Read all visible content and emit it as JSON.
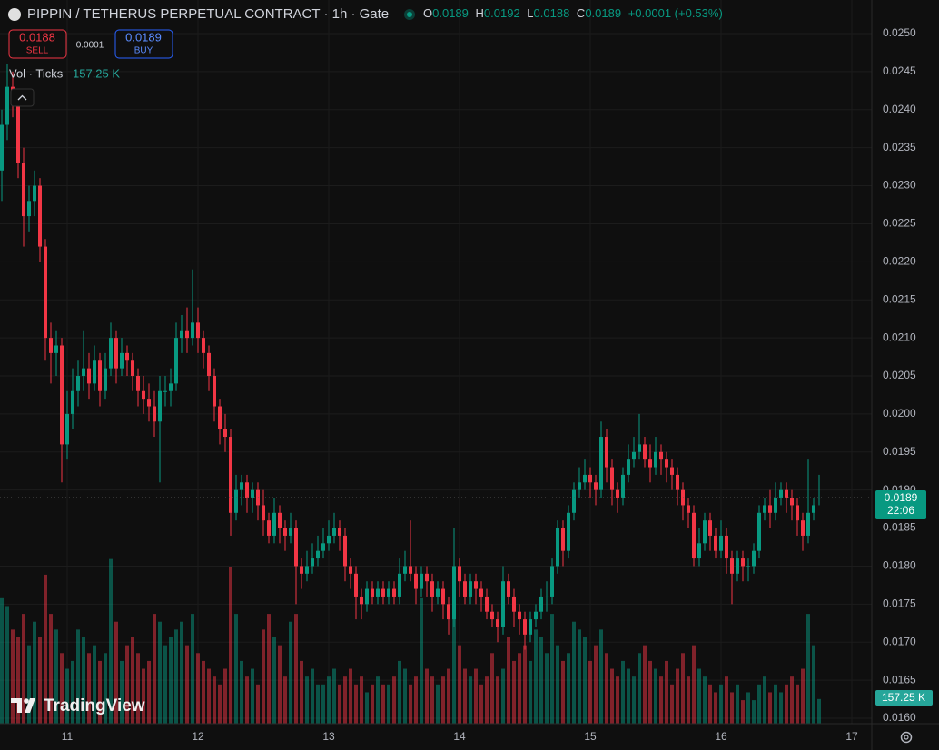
{
  "header": {
    "title": "PIPPIN / TETHERUS PERPETUAL CONTRACT · 1h · Gate",
    "o_key": "O",
    "o_val": "0.0189",
    "h_key": "H",
    "h_val": "0.0192",
    "l_key": "L",
    "l_val": "0.0188",
    "c_key": "C",
    "c_val": "0.0189",
    "change": "+0.0001 (+0.53%)"
  },
  "trade": {
    "sell_price": "0.0188",
    "sell": "SELL",
    "spread": "0.0001",
    "buy_price": "0.0189",
    "buy": "BUY"
  },
  "volume_legend": {
    "name": "Vol · Ticks",
    "value": "157.25 K"
  },
  "price_badge": {
    "price": "0.0189",
    "countdown": "22:06"
  },
  "volume_badge": "157.25 K",
  "logo": "TradingView",
  "chart_data": {
    "type": "candlestick",
    "xlim": [
      -0.333,
      159.667
    ],
    "xticks": [
      {
        "value": 12,
        "label": "11"
      },
      {
        "value": 36,
        "label": "12"
      },
      {
        "value": 60,
        "label": "13"
      },
      {
        "value": 84,
        "label": "14"
      },
      {
        "value": 108,
        "label": "15"
      },
      {
        "value": 132,
        "label": "16"
      },
      {
        "value": 156,
        "label": "17"
      }
    ],
    "ylim": [
      0.016,
      0.025
    ],
    "yticks": [
      {
        "value": 0.016,
        "label": "0.0160"
      },
      0.0165,
      {
        "value": 0.017,
        "label": "0.0170"
      },
      0.0175,
      {
        "value": 0.018,
        "label": "0.0180"
      },
      0.0185,
      {
        "value": 0.019,
        "label": "0.0190"
      },
      0.0195,
      {
        "value": 0.02,
        "label": "0.0200"
      },
      0.0205,
      {
        "value": 0.021,
        "label": "0.0210"
      },
      0.0215,
      {
        "value": 0.022,
        "label": "0.0220"
      },
      0.0225,
      {
        "value": 0.023,
        "label": "0.0230"
      },
      0.0235,
      {
        "value": 0.024,
        "label": "0.0240"
      },
      0.0245,
      {
        "value": 0.025,
        "label": "0.0250"
      }
    ],
    "grid": true,
    "up_color": "#089981",
    "down_color": "#f23645",
    "current_price": 0.0189,
    "open": [
      0.0232,
      0.0238,
      0.0243,
      0.0241,
      0.0233,
      0.0226,
      0.0228,
      0.023,
      0.0222,
      0.021,
      0.0208,
      0.0209,
      0.0196,
      0.02,
      0.0203,
      0.0205,
      0.0206,
      0.0204,
      0.0207,
      0.0203,
      0.0206,
      0.021,
      0.0206,
      0.0208,
      0.0207,
      0.0205,
      0.0203,
      0.0202,
      0.0201,
      0.0199,
      0.0203,
      0.0203,
      0.0204,
      0.021,
      0.0211,
      0.021,
      0.0212,
      0.021,
      0.0208,
      0.0205,
      0.0201,
      0.0198,
      0.0197,
      0.0187,
      0.019,
      0.0191,
      0.0189,
      0.019,
      0.0188,
      0.0186,
      0.0184,
      0.0187,
      0.0185,
      0.0184,
      0.0185,
      0.018,
      0.0179,
      0.018,
      0.0181,
      0.0182,
      0.0183,
      0.0184,
      0.0185,
      0.0184,
      0.018,
      0.0179,
      0.0176,
      0.0175,
      0.0177,
      0.0176,
      0.0177,
      0.0176,
      0.0177,
      0.0176,
      0.0179,
      0.018,
      0.0179,
      0.0177,
      0.0179,
      0.0178,
      0.0176,
      0.0177,
      0.0175,
      0.0173,
      0.018,
      0.0178,
      0.0176,
      0.0178,
      0.0177,
      0.0176,
      0.0174,
      0.0173,
      0.0172,
      0.0178,
      0.0176,
      0.0174,
      0.0173,
      0.0171,
      0.0173,
      0.0174,
      0.0176,
      0.0176,
      0.018,
      0.0185,
      0.0182,
      0.0187,
      0.019,
      0.0191,
      0.0192,
      0.0191,
      0.019,
      0.0197,
      0.0193,
      0.019,
      0.0189,
      0.0192,
      0.0194,
      0.0195,
      0.0196,
      0.0194,
      0.0193,
      0.0195,
      0.0194,
      0.0193,
      0.0192,
      0.019,
      0.0188,
      0.0187,
      0.0181,
      0.0183,
      0.0186,
      0.0184,
      0.0182,
      0.0184,
      0.0181,
      0.0179,
      0.0181,
      0.018,
      0.018,
      0.0182,
      0.0187,
      0.0188,
      0.0187,
      0.0189,
      0.019,
      0.0189,
      0.0188,
      0.0186,
      0.0184,
      0.0187,
      0.0189
    ],
    "high": [
      0.024,
      0.0246,
      0.0245,
      0.0242,
      0.0235,
      0.023,
      0.0232,
      0.0231,
      0.0223,
      0.0212,
      0.0211,
      0.021,
      0.0203,
      0.0206,
      0.0207,
      0.0211,
      0.0208,
      0.0209,
      0.0208,
      0.0208,
      0.0212,
      0.0211,
      0.021,
      0.0209,
      0.0208,
      0.0206,
      0.0205,
      0.0204,
      0.0203,
      0.0205,
      0.0205,
      0.0206,
      0.0212,
      0.0213,
      0.0214,
      0.0219,
      0.0214,
      0.0211,
      0.0209,
      0.0206,
      0.0202,
      0.02,
      0.0198,
      0.0192,
      0.0192,
      0.0192,
      0.0191,
      0.0191,
      0.019,
      0.0187,
      0.0189,
      0.0188,
      0.0186,
      0.0187,
      0.0186,
      0.0181,
      0.0182,
      0.0183,
      0.0184,
      0.0185,
      0.0186,
      0.0187,
      0.0186,
      0.0185,
      0.0181,
      0.018,
      0.0177,
      0.0178,
      0.0178,
      0.0178,
      0.0178,
      0.0178,
      0.0178,
      0.0181,
      0.0182,
      0.0186,
      0.018,
      0.018,
      0.018,
      0.0179,
      0.0178,
      0.0178,
      0.0176,
      0.0185,
      0.0181,
      0.0179,
      0.0179,
      0.0179,
      0.0178,
      0.0177,
      0.0175,
      0.0174,
      0.018,
      0.0179,
      0.0177,
      0.0175,
      0.0174,
      0.0174,
      0.0175,
      0.0177,
      0.0178,
      0.0181,
      0.0186,
      0.0186,
      0.0188,
      0.0191,
      0.0193,
      0.0194,
      0.0193,
      0.0192,
      0.0199,
      0.0198,
      0.0194,
      0.0191,
      0.0193,
      0.0196,
      0.0197,
      0.02,
      0.0197,
      0.0196,
      0.0197,
      0.0196,
      0.0195,
      0.0194,
      0.0193,
      0.0191,
      0.0189,
      0.0188,
      0.0185,
      0.0187,
      0.0187,
      0.0185,
      0.0186,
      0.0185,
      0.0182,
      0.0182,
      0.0182,
      0.0181,
      0.0183,
      0.0188,
      0.0189,
      0.019,
      0.0191,
      0.0191,
      0.0191,
      0.019,
      0.0189,
      0.0187,
      0.0194,
      0.0189,
      0.0192
    ],
    "low": [
      0.0228,
      0.0236,
      0.0239,
      0.0231,
      0.0222,
      0.0224,
      0.0226,
      0.022,
      0.0207,
      0.0204,
      0.0205,
      0.0191,
      0.0194,
      0.0198,
      0.0201,
      0.0203,
      0.0202,
      0.0203,
      0.0201,
      0.0202,
      0.0205,
      0.0204,
      0.0205,
      0.0205,
      0.0203,
      0.0201,
      0.02,
      0.0199,
      0.0197,
      0.0191,
      0.0201,
      0.0201,
      0.0203,
      0.0208,
      0.0208,
      0.0209,
      0.0208,
      0.0206,
      0.0203,
      0.0199,
      0.0196,
      0.0195,
      0.0184,
      0.0186,
      0.0188,
      0.0187,
      0.0187,
      0.0186,
      0.0184,
      0.0183,
      0.0183,
      0.0183,
      0.0182,
      0.0183,
      0.0175,
      0.0177,
      0.0178,
      0.0179,
      0.018,
      0.0181,
      0.0182,
      0.0183,
      0.0182,
      0.0178,
      0.0177,
      0.0173,
      0.0173,
      0.0174,
      0.0175,
      0.0175,
      0.0175,
      0.0175,
      0.0175,
      0.0175,
      0.0178,
      0.0178,
      0.0175,
      0.0176,
      0.0176,
      0.0174,
      0.0175,
      0.0173,
      0.0171,
      0.0172,
      0.0176,
      0.0175,
      0.0175,
      0.0175,
      0.0174,
      0.0173,
      0.0172,
      0.017,
      0.0171,
      0.0175,
      0.0172,
      0.0171,
      0.0169,
      0.017,
      0.0172,
      0.0173,
      0.0174,
      0.0175,
      0.0179,
      0.018,
      0.0181,
      0.0186,
      0.0189,
      0.019,
      0.0189,
      0.0188,
      0.0189,
      0.0191,
      0.0188,
      0.0187,
      0.0188,
      0.0191,
      0.0193,
      0.0194,
      0.0193,
      0.0191,
      0.0192,
      0.0192,
      0.0191,
      0.019,
      0.0188,
      0.0186,
      0.0185,
      0.018,
      0.018,
      0.0182,
      0.0182,
      0.0181,
      0.0181,
      0.0179,
      0.0175,
      0.0178,
      0.0178,
      0.0178,
      0.0179,
      0.0181,
      0.0186,
      0.0185,
      0.0186,
      0.0188,
      0.0187,
      0.0186,
      0.0184,
      0.0182,
      0.0183,
      0.0186,
      0.0188
    ],
    "close": [
      0.0238,
      0.0243,
      0.0241,
      0.0233,
      0.0226,
      0.0228,
      0.023,
      0.0222,
      0.021,
      0.0208,
      0.0209,
      0.0196,
      0.02,
      0.0203,
      0.0205,
      0.0206,
      0.0204,
      0.0207,
      0.0203,
      0.0206,
      0.021,
      0.0206,
      0.0208,
      0.0207,
      0.0205,
      0.0203,
      0.0202,
      0.0201,
      0.0199,
      0.0203,
      0.0203,
      0.0204,
      0.021,
      0.0211,
      0.021,
      0.0212,
      0.021,
      0.0208,
      0.0205,
      0.0201,
      0.0198,
      0.0197,
      0.0187,
      0.019,
      0.0191,
      0.0189,
      0.019,
      0.0188,
      0.0186,
      0.0184,
      0.0187,
      0.0185,
      0.0184,
      0.0185,
      0.018,
      0.0179,
      0.018,
      0.0181,
      0.0182,
      0.0183,
      0.0184,
      0.0185,
      0.0184,
      0.018,
      0.0179,
      0.0176,
      0.0175,
      0.0177,
      0.0176,
      0.0177,
      0.0176,
      0.0177,
      0.0176,
      0.0179,
      0.018,
      0.0179,
      0.0177,
      0.0179,
      0.0178,
      0.0176,
      0.0177,
      0.0175,
      0.0173,
      0.018,
      0.0178,
      0.0176,
      0.0178,
      0.0177,
      0.0176,
      0.0174,
      0.0173,
      0.0172,
      0.0178,
      0.0176,
      0.0174,
      0.0173,
      0.0171,
      0.0173,
      0.0174,
      0.0176,
      0.0176,
      0.018,
      0.0185,
      0.0182,
      0.0187,
      0.019,
      0.0191,
      0.0192,
      0.0191,
      0.019,
      0.0197,
      0.0193,
      0.019,
      0.0189,
      0.0192,
      0.0194,
      0.0195,
      0.0196,
      0.0194,
      0.0193,
      0.0195,
      0.0194,
      0.0193,
      0.0192,
      0.019,
      0.0188,
      0.0187,
      0.0181,
      0.0183,
      0.0186,
      0.0184,
      0.0182,
      0.0184,
      0.0181,
      0.0179,
      0.0181,
      0.018,
      0.018,
      0.0182,
      0.0187,
      0.0188,
      0.0187,
      0.0189,
      0.019,
      0.0189,
      0.0188,
      0.0186,
      0.0184,
      0.0187,
      0.0188,
      0.0189
    ],
    "vlim": [
      0,
      1100
    ],
    "volume": [
      800,
      750,
      600,
      550,
      700,
      500,
      650,
      550,
      950,
      700,
      600,
      450,
      350,
      400,
      600,
      550,
      450,
      500,
      400,
      450,
      1050,
      650,
      400,
      500,
      550,
      450,
      350,
      400,
      700,
      650,
      500,
      550,
      600,
      650,
      500,
      700,
      450,
      400,
      350,
      300,
      250,
      350,
      1000,
      700,
      400,
      300,
      350,
      250,
      600,
      700,
      550,
      500,
      300,
      650,
      700,
      400,
      300,
      350,
      250,
      250,
      300,
      350,
      250,
      300,
      350,
      250,
      300,
      200,
      250,
      300,
      250,
      250,
      300,
      400,
      350,
      250,
      300,
      800,
      350,
      300,
      250,
      300,
      350,
      700,
      500,
      350,
      300,
      350,
      250,
      300,
      450,
      300,
      350,
      550,
      400,
      450,
      500,
      400,
      600,
      550,
      450,
      700,
      500,
      400,
      450,
      650,
      600,
      550,
      400,
      500,
      600,
      450,
      350,
      300,
      400,
      350,
      300,
      450,
      500,
      400,
      350,
      300,
      400,
      250,
      350,
      450,
      300,
      500,
      350,
      300,
      250,
      200,
      250,
      300,
      200,
      250,
      150,
      200,
      150,
      250,
      300,
      200,
      250,
      200,
      250,
      300,
      250,
      350,
      700,
      500,
      157.25
    ]
  }
}
